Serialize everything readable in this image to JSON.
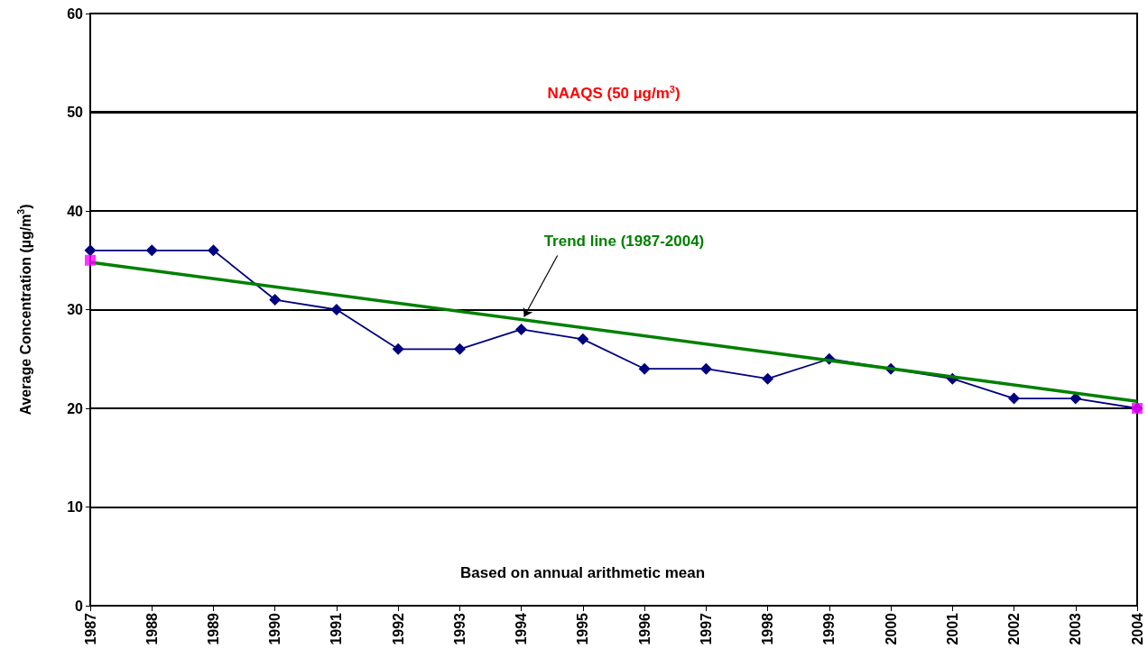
{
  "chart_data": {
    "type": "line",
    "ylabel": "Average Concentration (µg/m$^{3}$)",
    "categories": [
      "1987",
      "1988",
      "1989",
      "1990",
      "1991",
      "1992",
      "1993",
      "1994",
      "1995",
      "1996",
      "1997",
      "1998",
      "1999",
      "2000",
      "2001",
      "2002",
      "2003",
      "2004"
    ],
    "series": [
      {
        "color": "#000080",
        "marker": "diamond",
        "values": [
          36,
          36,
          36,
          31,
          30,
          26,
          26,
          28,
          27,
          24,
          24,
          23,
          25,
          24,
          23,
          21,
          21,
          20
        ]
      },
      {
        "color": "#008000",
        "marker": "none",
        "values": [
          34.8,
          null,
          null,
          null,
          null,
          null,
          null,
          null,
          null,
          null,
          null,
          null,
          null,
          null,
          null,
          null,
          null,
          20.7
        ]
      },
      {
        "type": "scatter",
        "color": "#ff00ff",
        "marker": "square",
        "values": [
          35,
          null,
          null,
          null,
          null,
          null,
          null,
          null,
          null,
          null,
          null,
          null,
          null,
          null,
          null,
          null,
          null,
          20
        ]
      }
    ],
    "ylim": [
      0,
      60
    ],
    "yticks": [
      0,
      10,
      20,
      30,
      40,
      50,
      60
    ],
    "grid": "y",
    "ref_lines": [
      {
        "axis": "y",
        "value": 50,
        "label": "NAAQS (50 µg/m$^{3}$)"
      }
    ],
    "annotations": [
      {
        "text": "Trend line (1987-2004)",
        "x": "1994",
        "y": 29
      },
      "Based on annual arithmetic mean"
    ]
  }
}
